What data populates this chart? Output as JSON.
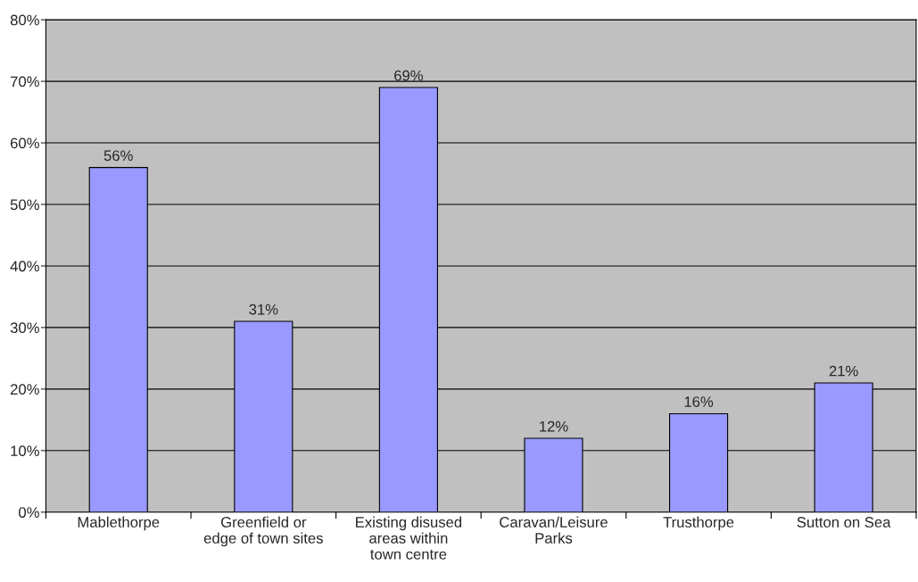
{
  "chart_data": {
    "type": "bar",
    "categories": [
      "Mablethorpe",
      "Greenfield or\nedge of town sites",
      "Existing disused\nareas within\ntown centre",
      "Caravan/Leisure\nParks",
      "Trusthorpe",
      "Sutton on Sea"
    ],
    "values": [
      56,
      31,
      69,
      12,
      16,
      21
    ],
    "value_labels": [
      "56%",
      "31%",
      "69%",
      "12%",
      "16%",
      "21%"
    ],
    "color": "#9999ff",
    "ylim": [
      0,
      80
    ],
    "yticks": [
      {
        "value": 0,
        "label": "0%"
      },
      {
        "value": 10,
        "label": "10%"
      },
      {
        "value": 20,
        "label": "20%"
      },
      {
        "value": 30,
        "label": "30%"
      },
      {
        "value": 40,
        "label": "40%"
      },
      {
        "value": 50,
        "label": "50%"
      },
      {
        "value": 60,
        "label": "60%"
      },
      {
        "value": 70,
        "label": "70%"
      },
      {
        "value": 80,
        "label": "80%"
      }
    ],
    "grid": "y",
    "legend": false
  }
}
